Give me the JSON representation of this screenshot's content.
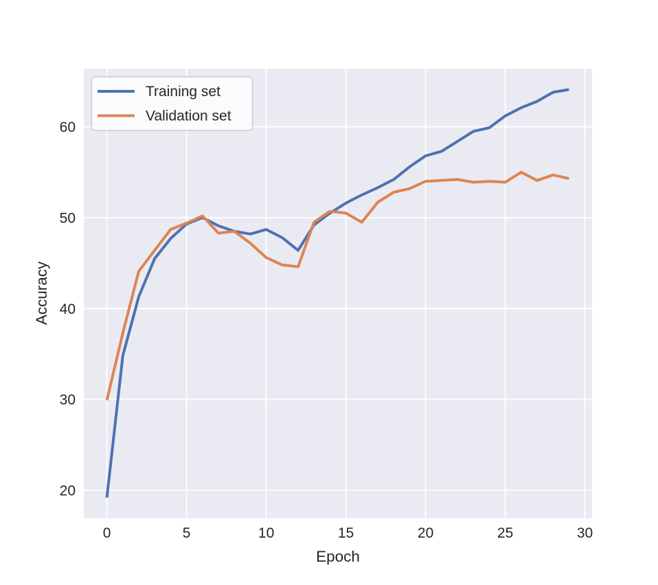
{
  "figure": {
    "background": "#ffffff",
    "axes_background": "#eaeaf2",
    "grid_color": "#ffffff",
    "text_color": "#262626",
    "legend_border_color": "#cccccc",
    "legend_background": "rgba(255,255,255,0.8)"
  },
  "chart_data": {
    "type": "line",
    "title": "",
    "xlabel": "Epoch",
    "ylabel": "Accuracy",
    "grid": true,
    "legend_position": "upper left",
    "xlim": [
      -1.45,
      30.45
    ],
    "ylim": [
      16.9,
      66.4
    ],
    "xticks": [
      0,
      5,
      10,
      15,
      20,
      25,
      30
    ],
    "yticks": [
      20,
      30,
      40,
      50,
      60
    ],
    "x": [
      0,
      1,
      2,
      3,
      4,
      5,
      6,
      7,
      8,
      9,
      10,
      11,
      12,
      13,
      14,
      15,
      16,
      17,
      18,
      19,
      20,
      21,
      22,
      23,
      24,
      25,
      26,
      27,
      28,
      29
    ],
    "series": [
      {
        "name": "Training set",
        "color": "#4c72b0",
        "values": [
          19.2,
          34.8,
          41.3,
          45.5,
          47.7,
          49.3,
          50.0,
          49.1,
          48.5,
          48.2,
          48.7,
          47.8,
          46.4,
          49.2,
          50.5,
          51.6,
          52.5,
          53.3,
          54.2,
          55.6,
          56.8,
          57.3,
          58.4,
          59.5,
          59.9,
          61.2,
          62.1,
          62.8,
          63.8,
          64.1
        ]
      },
      {
        "name": "Validation set",
        "color": "#dd8452",
        "values": [
          29.9,
          37.3,
          44.1,
          46.4,
          48.7,
          49.4,
          50.2,
          48.3,
          48.5,
          47.2,
          45.6,
          44.8,
          44.6,
          49.5,
          50.7,
          50.5,
          49.5,
          51.7,
          52.8,
          53.2,
          54.0,
          54.1,
          54.2,
          53.9,
          54.0,
          53.9,
          55.0,
          54.1,
          54.7,
          54.3
        ]
      }
    ]
  }
}
